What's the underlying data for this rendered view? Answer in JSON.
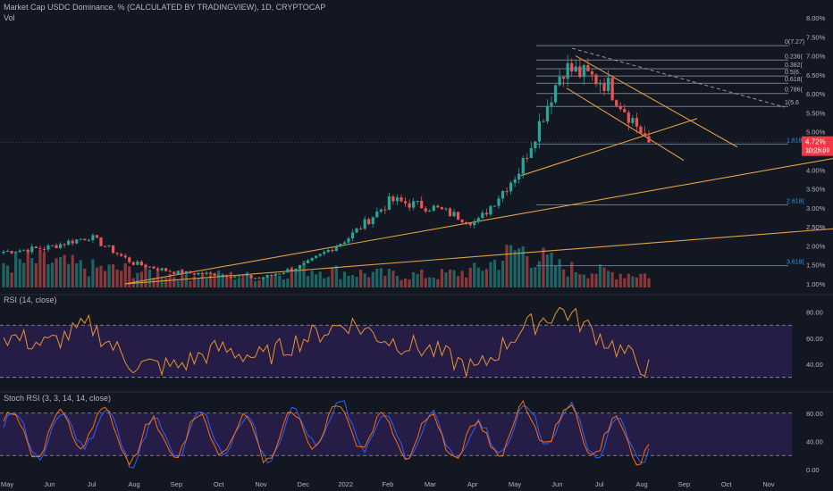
{
  "header": {
    "title": "Market Cap USDC Dominance, % (CALCULATED BY TRADINGVIEW), 1D, CRYPTOCAP",
    "volume_label": "Vol"
  },
  "colors": {
    "background": "#131722",
    "up": "#26a69a",
    "down": "#ef5350",
    "rsi_line": "#e8912e",
    "rsi_band": "#2a1f4e",
    "stoch_k": "#2962ff",
    "stoch_d": "#ff6d00",
    "trendline": "#e0a040",
    "fib": "#787b86",
    "fib_ext": "#1e88e5",
    "price_badge": "#f23645"
  },
  "price_badge": {
    "price": "4.72%",
    "countdown": "10:26:59"
  },
  "fib_labels": [
    "0(7.27)",
    "0.236(",
    "0.382(",
    "0.5(6.",
    "0.618(",
    "0.786(",
    "1(5.6",
    "1.618(",
    "2.618(",
    "3.618("
  ],
  "chart_data": [
    {
      "type": "candlestick",
      "title": "Market Cap USDC Dominance, % (CALCULATED BY TRADINGVIEW), 1D, CRYPTOCAP",
      "x_ticks": [
        "May",
        "Jun",
        "Jul",
        "Aug",
        "Sep",
        "Oct",
        "Nov",
        "Dec",
        "2022",
        "Feb",
        "Mar",
        "Apr",
        "May",
        "Jun",
        "Jul",
        "Aug",
        "Sep",
        "Oct",
        "Nov"
      ],
      "y_ticks": [
        "8.00%",
        "7.50%",
        "7.00%",
        "6.50%",
        "6.00%",
        "5.50%",
        "5.00%",
        "4.50%",
        "4.00%",
        "3.50%",
        "3.00%",
        "2.50%",
        "2.00%",
        "1.50%",
        "1.00%"
      ],
      "ylim": [
        1.0,
        8.0
      ],
      "x": [
        "May-21",
        "Jun-21",
        "Jul-21",
        "Aug-21",
        "Sep-21",
        "Oct-21",
        "Nov-21",
        "Dec-21",
        "Jan-22",
        "Feb-22",
        "Mar-22",
        "Apr-22",
        "May-22",
        "Jun-22",
        "Jul-22",
        "Aug-22"
      ],
      "close": [
        1.85,
        1.95,
        2.25,
        1.55,
        1.3,
        1.25,
        1.15,
        1.5,
        2.2,
        3.2,
        3.0,
        2.6,
        4.0,
        6.7,
        6.3,
        4.72
      ],
      "last_value": 4.72,
      "fib_levels": [
        {
          "label": "0(7.27)",
          "value": 7.27
        },
        {
          "label": "0.236(",
          "value": 6.89
        },
        {
          "label": "0.382(",
          "value": 6.66
        },
        {
          "label": "0.5(6.",
          "value": 6.47
        },
        {
          "label": "0.618(",
          "value": 6.28
        },
        {
          "label": "0.786(",
          "value": 6.01
        },
        {
          "label": "1(5.6",
          "value": 5.67
        },
        {
          "label": "1.618(",
          "value": 4.68
        },
        {
          "label": "2.618(",
          "value": 3.08
        },
        {
          "label": "3.618(",
          "value": 1.48
        }
      ]
    },
    {
      "type": "bar",
      "title": "Vol",
      "values": [
        0.55,
        0.6,
        0.45,
        0.4,
        0.3,
        0.28,
        0.25,
        0.45,
        0.35,
        0.3,
        0.28,
        0.4,
        0.9,
        0.45,
        0.35,
        0.3
      ]
    },
    {
      "type": "line",
      "title": "RSI (14, close)",
      "y_ticks": [
        "80.00",
        "60.00",
        "40.00"
      ],
      "ylim": [
        25,
        90
      ],
      "bands": [
        30,
        70
      ],
      "values": [
        62,
        55,
        70,
        40,
        38,
        52,
        45,
        60,
        72,
        58,
        50,
        35,
        66,
        82,
        58,
        36
      ]
    },
    {
      "type": "line",
      "title": "Stoch RSI (3, 3, 14, 14, close)",
      "y_ticks": [
        "80.00",
        "40.00",
        "0.00"
      ],
      "ylim": [
        -5,
        105
      ],
      "bands": [
        20,
        80
      ],
      "series": [
        {
          "values": [
            70,
            30,
            90,
            15,
            40,
            65,
            20,
            80,
            95,
            35,
            55,
            10,
            85,
            90,
            25,
            30
          ]
        },
        {
          "values": [
            65,
            35,
            85,
            20,
            38,
            60,
            25,
            75,
            90,
            40,
            50,
            15,
            80,
            88,
            30,
            28
          ]
        }
      ]
    }
  ]
}
